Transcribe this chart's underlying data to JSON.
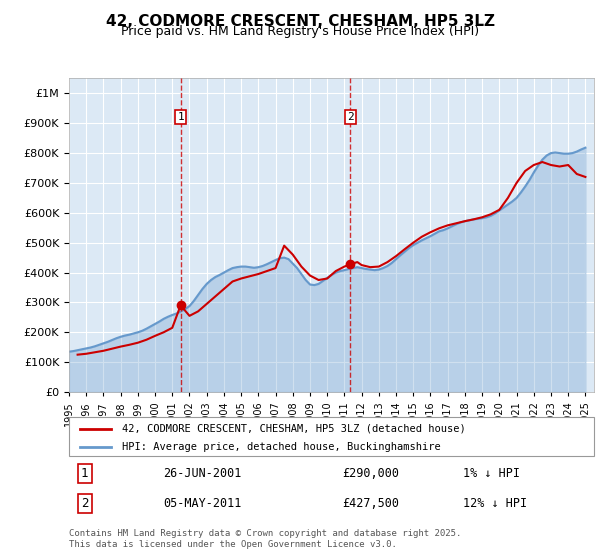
{
  "title": "42, CODMORE CRESCENT, CHESHAM, HP5 3LZ",
  "subtitle": "Price paid vs. HM Land Registry's House Price Index (HPI)",
  "ylabel_ticks": [
    "£0",
    "£100K",
    "£200K",
    "£300K",
    "£400K",
    "£500K",
    "£600K",
    "£700K",
    "£800K",
    "£900K",
    "£1M"
  ],
  "ytick_values": [
    0,
    100000,
    200000,
    300000,
    400000,
    500000,
    600000,
    700000,
    800000,
    900000,
    1000000
  ],
  "ylim": [
    0,
    1050000
  ],
  "xlim_start": 1995,
  "xlim_end": 2025.5,
  "background_color": "#dce9f5",
  "plot_bg_color": "#dce9f5",
  "grid_color": "#ffffff",
  "sale1_date": 2001.484,
  "sale1_price": 290000,
  "sale2_date": 2011.339,
  "sale2_price": 427500,
  "legend_line1": "42, CODMORE CRESCENT, CHESHAM, HP5 3LZ (detached house)",
  "legend_line2": "HPI: Average price, detached house, Buckinghamshire",
  "annotation1_label": "1",
  "annotation1_date": "26-JUN-2001",
  "annotation1_price": "£290,000",
  "annotation1_pct": "1% ↓ HPI",
  "annotation2_label": "2",
  "annotation2_date": "05-MAY-2011",
  "annotation2_price": "£427,500",
  "annotation2_pct": "12% ↓ HPI",
  "footer": "Contains HM Land Registry data © Crown copyright and database right 2025.\nThis data is licensed under the Open Government Licence v3.0.",
  "line_red_color": "#cc0000",
  "line_blue_color": "#6699cc",
  "hpi_years": [
    1995,
    1995.25,
    1995.5,
    1995.75,
    1996,
    1996.25,
    1996.5,
    1996.75,
    1997,
    1997.25,
    1997.5,
    1997.75,
    1998,
    1998.25,
    1998.5,
    1998.75,
    1999,
    1999.25,
    1999.5,
    1999.75,
    2000,
    2000.25,
    2000.5,
    2000.75,
    2001,
    2001.25,
    2001.5,
    2001.75,
    2002,
    2002.25,
    2002.5,
    2002.75,
    2003,
    2003.25,
    2003.5,
    2003.75,
    2004,
    2004.25,
    2004.5,
    2004.75,
    2005,
    2005.25,
    2005.5,
    2005.75,
    2006,
    2006.25,
    2006.5,
    2006.75,
    2007,
    2007.25,
    2007.5,
    2007.75,
    2008,
    2008.25,
    2008.5,
    2008.75,
    2009,
    2009.25,
    2009.5,
    2009.75,
    2010,
    2010.25,
    2010.5,
    2010.75,
    2011,
    2011.25,
    2011.5,
    2011.75,
    2012,
    2012.25,
    2012.5,
    2012.75,
    2013,
    2013.25,
    2013.5,
    2013.75,
    2014,
    2014.25,
    2014.5,
    2014.75,
    2015,
    2015.25,
    2015.5,
    2015.75,
    2016,
    2016.25,
    2016.5,
    2016.75,
    2017,
    2017.25,
    2017.5,
    2017.75,
    2018,
    2018.25,
    2018.5,
    2018.75,
    2019,
    2019.25,
    2019.5,
    2019.75,
    2020,
    2020.25,
    2020.5,
    2020.75,
    2021,
    2021.25,
    2021.5,
    2021.75,
    2022,
    2022.25,
    2022.5,
    2022.75,
    2023,
    2023.25,
    2023.5,
    2023.75,
    2024,
    2024.25,
    2024.5,
    2024.75,
    2025
  ],
  "hpi_values": [
    135000,
    137000,
    140000,
    143000,
    146000,
    149000,
    153000,
    158000,
    163000,
    168000,
    174000,
    180000,
    185000,
    189000,
    192000,
    196000,
    200000,
    205000,
    212000,
    220000,
    228000,
    236000,
    245000,
    252000,
    258000,
    263000,
    270000,
    278000,
    288000,
    305000,
    325000,
    345000,
    362000,
    375000,
    385000,
    392000,
    400000,
    408000,
    415000,
    418000,
    420000,
    420000,
    418000,
    416000,
    418000,
    422000,
    428000,
    435000,
    442000,
    448000,
    450000,
    445000,
    430000,
    415000,
    395000,
    375000,
    360000,
    358000,
    362000,
    372000,
    382000,
    392000,
    400000,
    405000,
    408000,
    412000,
    415000,
    418000,
    415000,
    412000,
    410000,
    408000,
    410000,
    415000,
    422000,
    432000,
    445000,
    458000,
    470000,
    482000,
    492000,
    500000,
    508000,
    515000,
    522000,
    530000,
    538000,
    542000,
    548000,
    555000,
    562000,
    568000,
    572000,
    575000,
    578000,
    580000,
    582000,
    585000,
    590000,
    598000,
    608000,
    618000,
    628000,
    638000,
    650000,
    668000,
    688000,
    710000,
    735000,
    758000,
    778000,
    792000,
    800000,
    802000,
    800000,
    798000,
    798000,
    800000,
    805000,
    812000,
    818000
  ],
  "price_years": [
    1995.5,
    1996.0,
    1996.5,
    1997.0,
    1997.5,
    1998.0,
    1998.5,
    1999.0,
    1999.5,
    2000.0,
    2000.5,
    2001.0,
    2001.484,
    2002.0,
    2002.5,
    2003.0,
    2003.5,
    2004.0,
    2004.5,
    2005.0,
    2006.0,
    2006.5,
    2007.0,
    2007.5,
    2008.0,
    2008.5,
    2009.0,
    2009.5,
    2010.0,
    2010.5,
    2011.0,
    2011.339,
    2011.75,
    2012.0,
    2012.5,
    2013.0,
    2013.5,
    2014.0,
    2014.5,
    2015.0,
    2015.5,
    2016.0,
    2016.5,
    2017.0,
    2017.5,
    2018.0,
    2018.5,
    2019.0,
    2019.5,
    2020.0,
    2020.5,
    2021.0,
    2021.5,
    2022.0,
    2022.5,
    2023.0,
    2023.5,
    2024.0,
    2024.5,
    2025.0
  ],
  "price_values": [
    125000,
    128000,
    133000,
    138000,
    145000,
    152000,
    158000,
    165000,
    175000,
    188000,
    200000,
    215000,
    290000,
    255000,
    270000,
    295000,
    320000,
    345000,
    370000,
    380000,
    395000,
    405000,
    415000,
    490000,
    460000,
    420000,
    390000,
    375000,
    380000,
    405000,
    420000,
    427500,
    435000,
    425000,
    418000,
    420000,
    435000,
    455000,
    478000,
    500000,
    520000,
    535000,
    548000,
    558000,
    565000,
    572000,
    578000,
    585000,
    595000,
    610000,
    650000,
    700000,
    740000,
    760000,
    770000,
    760000,
    755000,
    760000,
    730000,
    720000
  ]
}
